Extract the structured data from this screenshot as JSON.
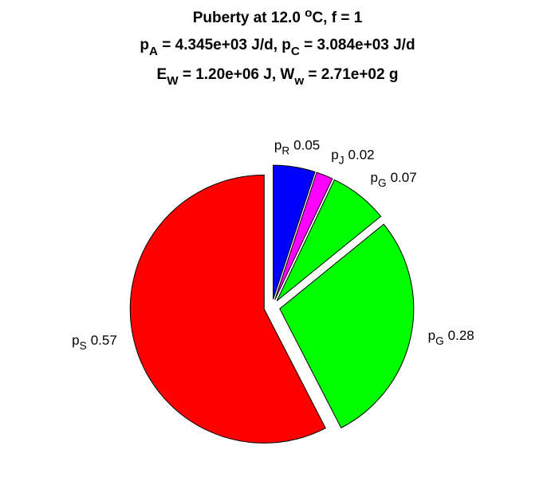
{
  "chart_data": {
    "type": "pie",
    "title": [
      [
        "Puberty at 12.0 ",
        {
          "sup": "o"
        },
        "C, f = 1"
      ],
      [
        "p",
        {
          "sub": "A"
        },
        " = 4.345e+03 J/d,  p",
        {
          "sub": "C"
        },
        " = 3.084e+03 J/d"
      ],
      [
        "E",
        {
          "sub": "W"
        },
        " = 1.20e+06 J, W",
        {
          "sub": "w"
        },
        " = 2.71e+02 g"
      ]
    ],
    "categories": [
      [
        "p",
        {
          "sub": "R"
        }
      ],
      [
        "p",
        {
          "sub": "J"
        }
      ],
      [
        "p",
        {
          "sub": "G"
        }
      ],
      [
        "p",
        {
          "sub": "G"
        }
      ],
      [
        "p",
        {
          "sub": "S"
        }
      ]
    ],
    "values": [
      0.05,
      0.02,
      0.07,
      0.28,
      0.57
    ],
    "colors": [
      "#0000ff",
      "#ff00ff",
      "#00ff00",
      "#00ff00",
      "#ff0000"
    ],
    "explode": [
      1,
      1,
      1,
      1,
      1
    ]
  }
}
